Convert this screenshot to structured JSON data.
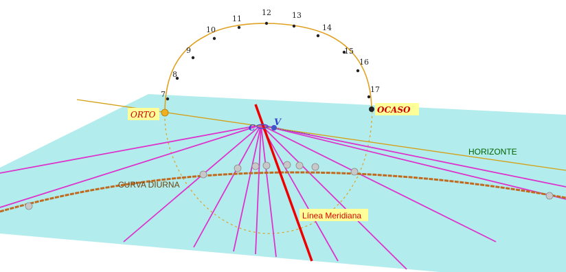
{
  "labels": {
    "orto": "ORTO",
    "ocaso": "OCASO",
    "horizonte": "HORIZONTE",
    "curva_diurna": "CURVA DIURNA",
    "linea_meridiana": "Línea Meridiana",
    "vertex": "V",
    "vertex_c": "C"
  },
  "hours": [
    "7",
    "8",
    "9",
    "10",
    "11",
    "12",
    "13",
    "14",
    "15",
    "16",
    "17"
  ],
  "colors": {
    "plane": "#b3ecec",
    "arc": "#e0a020",
    "hour_lines": "#dd33cc",
    "meridian": "#ee0000",
    "diurnal_curve": "#c06a20",
    "horizon_line": "#d4a017",
    "vertex": "#4455cc",
    "label_bg": "#ffff99"
  }
}
